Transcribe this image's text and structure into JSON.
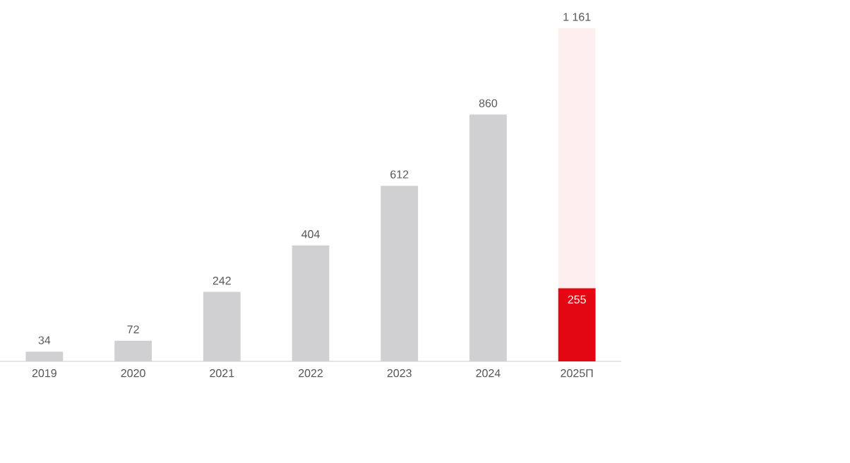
{
  "chart_data": {
    "type": "bar",
    "stacked": true,
    "categories": [
      "2019",
      "2020",
      "2021",
      "2022",
      "2023",
      "2024",
      "2025П"
    ],
    "series": [
      {
        "color": "#d0d0d2",
        "values": [
          34,
          72,
          242,
          404,
          612,
          860,
          null
        ],
        "value_labels": [
          "34",
          "72",
          "242",
          "404",
          "612",
          "860",
          null
        ]
      },
      {
        "color": "#e30613",
        "values": [
          null,
          null,
          null,
          null,
          null,
          null,
          255
        ],
        "value_labels": [
          null,
          null,
          null,
          null,
          null,
          null,
          "255"
        ]
      },
      {
        "color": "#fdeef0",
        "values": [
          null,
          null,
          null,
          null,
          null,
          null,
          906
        ]
      }
    ],
    "totals": [
      null,
      null,
      null,
      null,
      null,
      null,
      "1 161"
    ],
    "ylim": [
      0,
      1161
    ],
    "tick_labels": "x",
    "grid": false
  }
}
